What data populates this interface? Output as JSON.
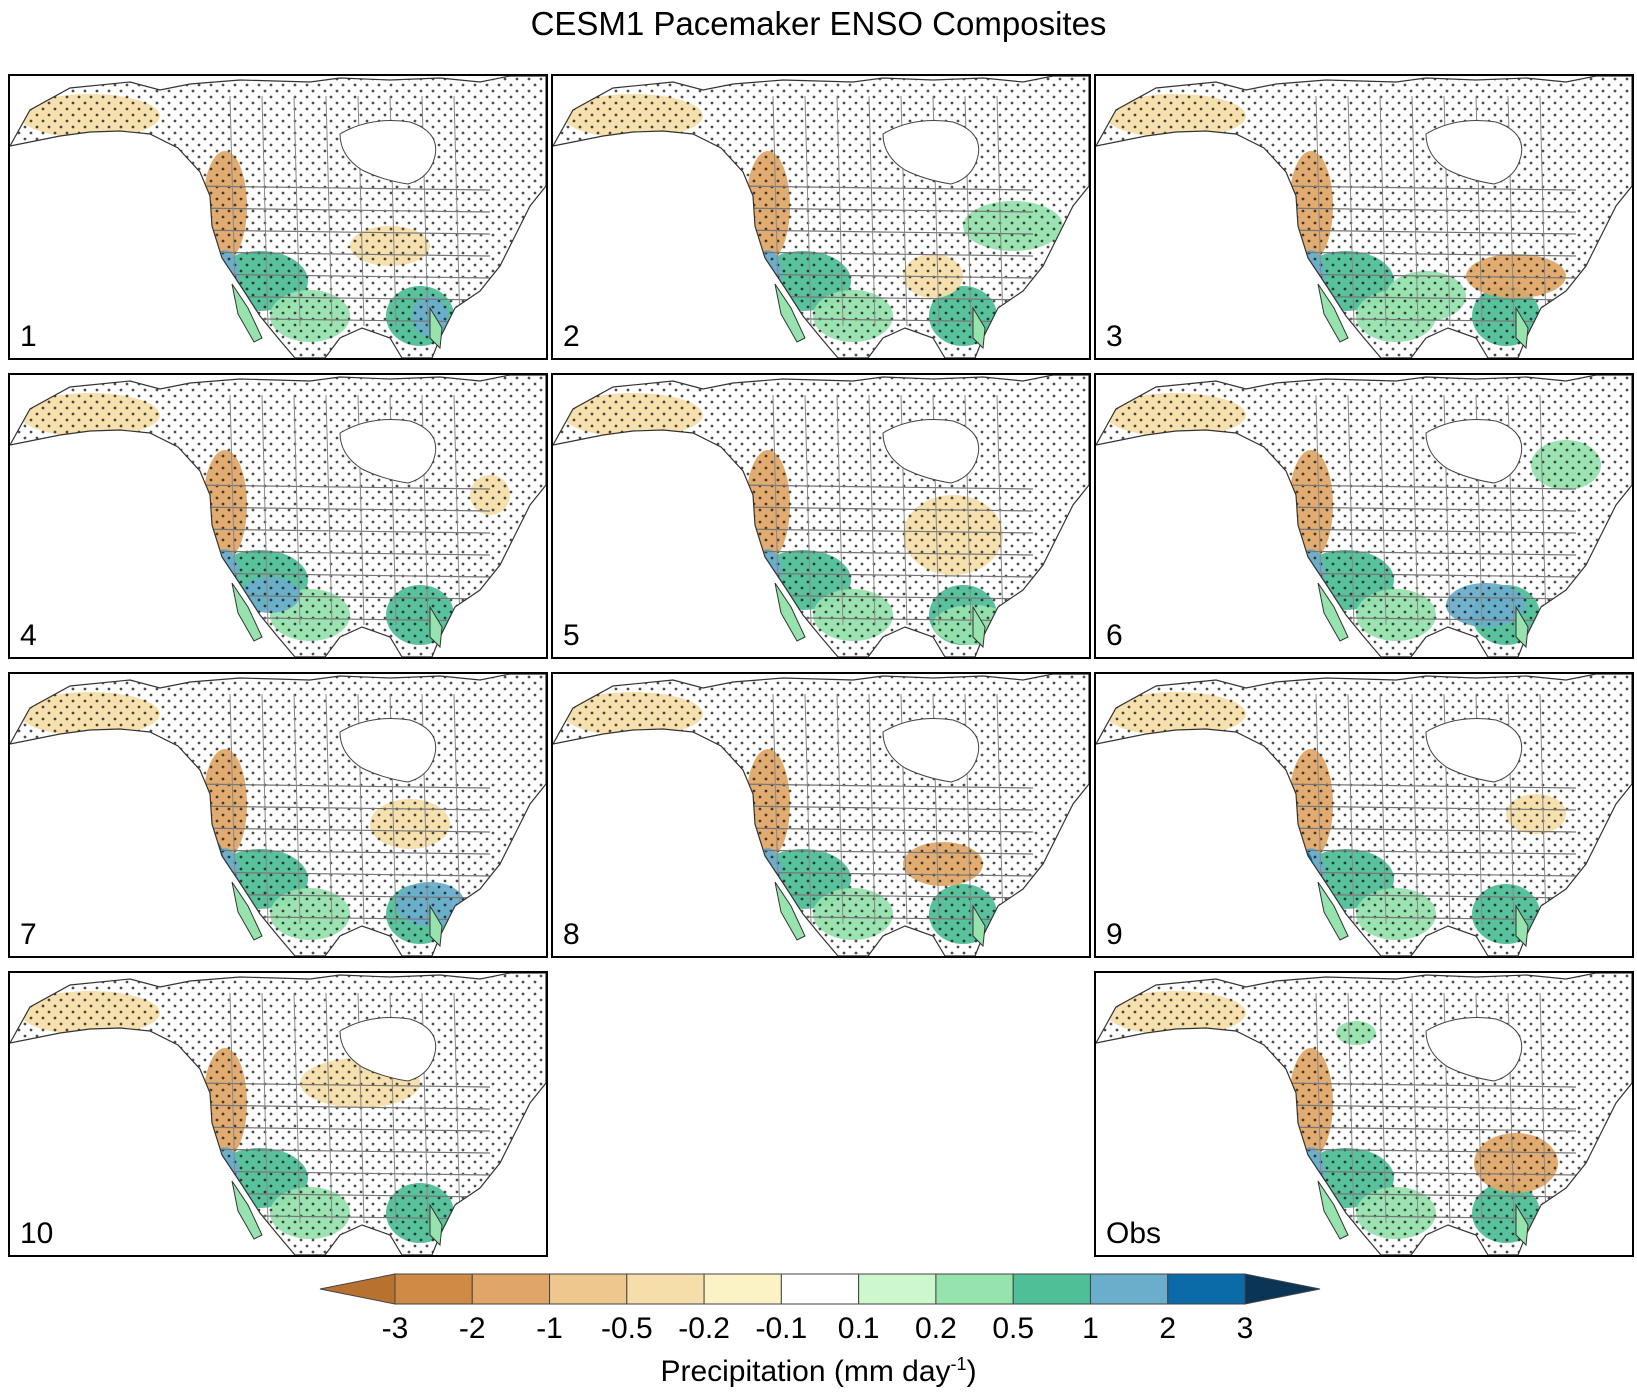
{
  "title": "CESM1 Pacemaker ENSO Composites",
  "panels": [
    {
      "label": "1"
    },
    {
      "label": "2"
    },
    {
      "label": "3"
    },
    {
      "label": "4"
    },
    {
      "label": "5"
    },
    {
      "label": "6"
    },
    {
      "label": "7"
    },
    {
      "label": "8"
    },
    {
      "label": "9"
    },
    {
      "label": "10"
    },
    {
      "label": "Obs"
    }
  ],
  "colorbar": {
    "title_main": "Precipitation (mm day",
    "title_sup": "-1",
    "title_end": ")",
    "tick_labels": [
      "-3",
      "-2",
      "-1",
      "-0.5",
      "-0.2",
      "-0.1",
      "0.1",
      "0.2",
      "0.5",
      "1",
      "2",
      "3"
    ],
    "colors": [
      "#b8722f",
      "#cf8a45",
      "#e0a668",
      "#eec78e",
      "#f6deaa",
      "#fbf3c6",
      "#ffffff",
      "#cdf7cc",
      "#96e3ad",
      "#4fbf98",
      "#6aaecb",
      "#0b6aa8",
      "#0b3556"
    ]
  },
  "colors": {
    "dry_strong": "#e0a668",
    "dry_mild": "#f6deaa",
    "wet_mild": "#96e3ad",
    "wet_strong": "#4fbf98",
    "wet_blue": "#6aaecb",
    "wet_dark": "#0b6aa8"
  }
}
